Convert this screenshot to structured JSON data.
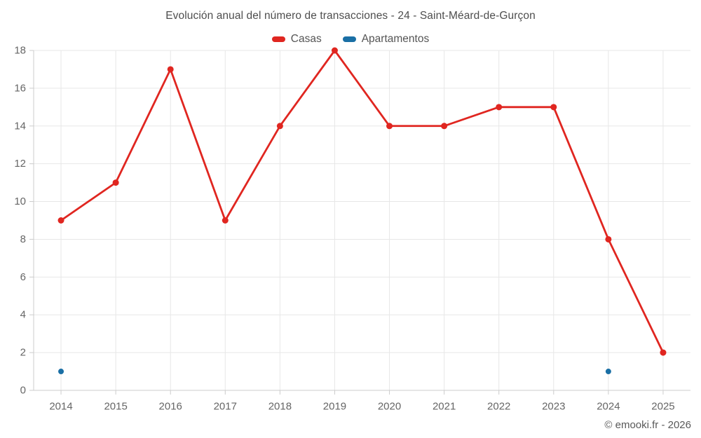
{
  "chart_data": {
    "type": "line",
    "title": "Evolución anual del número de transacciones - 24 - Saint-Méard-de-Gurçon",
    "categories": [
      "2014",
      "2015",
      "2016",
      "2017",
      "2018",
      "2019",
      "2020",
      "2021",
      "2022",
      "2023",
      "2024",
      "2025"
    ],
    "series": [
      {
        "name": "Casas",
        "color": "#e02620",
        "show_line": true,
        "point_radius": 4.5,
        "values": [
          9,
          11,
          17,
          9,
          14,
          18,
          14,
          14,
          15,
          15,
          8,
          2
        ]
      },
      {
        "name": "Apartamentos",
        "color": "#1a6fa5",
        "show_line": true,
        "point_radius": 4,
        "values": [
          1,
          null,
          null,
          null,
          null,
          null,
          null,
          null,
          null,
          null,
          1,
          null
        ]
      }
    ],
    "ylim": [
      0,
      18
    ],
    "ytick_step": 2,
    "yticks": [
      0,
      2,
      4,
      6,
      8,
      10,
      12,
      14,
      16,
      18
    ],
    "grid": true,
    "legend_position": "top",
    "footer": "© emooki.fr - 2026"
  },
  "colors": {
    "grid": "#e7e7e7",
    "axis": "#cccccc",
    "tick_label": "#666666",
    "title_text": "#4e4e4e",
    "legend_text": "#555555",
    "footer_text": "#595959",
    "background": "#ffffff"
  }
}
